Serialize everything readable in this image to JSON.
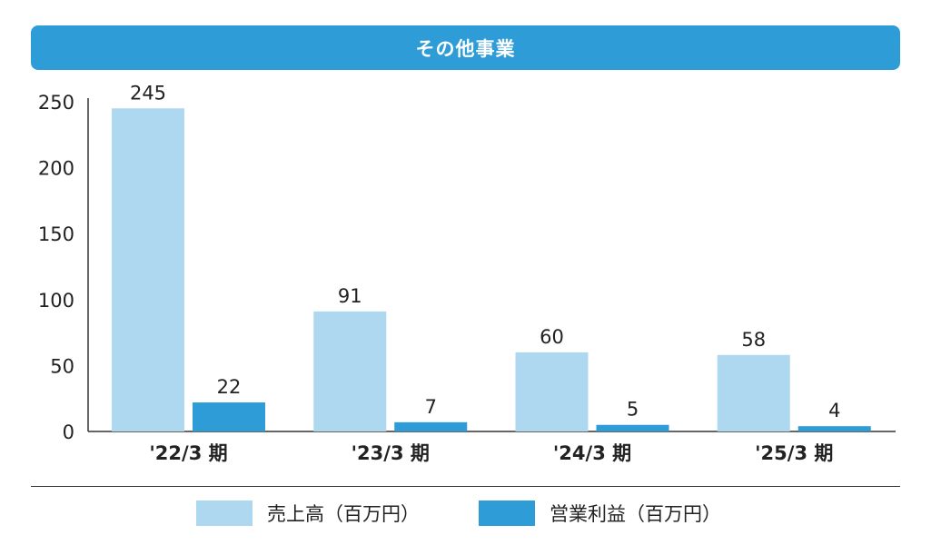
{
  "header": {
    "title": "その他事業"
  },
  "colors": {
    "title_bg": "#2e9cd6",
    "series_sales": "#aed8ef",
    "series_profit": "#2e9cd6",
    "axis": "#333333"
  },
  "chart_data": {
    "type": "bar",
    "title": "その他事業",
    "categories": [
      "'22/3 期",
      "'23/3 期",
      "'24/3 期",
      "'25/3 期"
    ],
    "series": [
      {
        "name": "売上高（百万円）",
        "values": [
          245,
          91,
          60,
          58
        ],
        "color": "#aed8ef"
      },
      {
        "name": "営業利益（百万円）",
        "values": [
          22,
          7,
          5,
          4
        ],
        "color": "#2e9cd6"
      }
    ],
    "yticks": [
      0,
      50,
      100,
      150,
      200,
      250
    ],
    "ylim": [
      0,
      250
    ],
    "xlabel": "",
    "ylabel": "",
    "grid": false,
    "legend_position": "bottom-center"
  }
}
